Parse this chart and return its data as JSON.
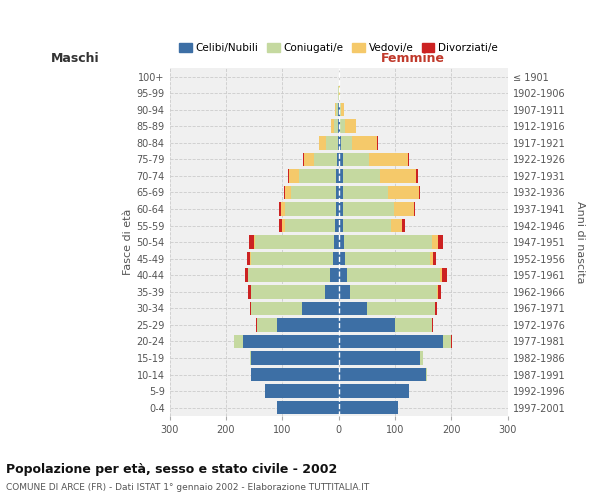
{
  "age_groups": [
    "0-4",
    "5-9",
    "10-14",
    "15-19",
    "20-24",
    "25-29",
    "30-34",
    "35-39",
    "40-44",
    "45-49",
    "50-54",
    "55-59",
    "60-64",
    "65-69",
    "70-74",
    "75-79",
    "80-84",
    "85-89",
    "90-94",
    "95-99",
    "100+"
  ],
  "birth_years": [
    "1997-2001",
    "1992-1996",
    "1987-1991",
    "1982-1986",
    "1977-1981",
    "1972-1976",
    "1967-1971",
    "1962-1966",
    "1957-1961",
    "1952-1956",
    "1947-1951",
    "1942-1946",
    "1937-1941",
    "1932-1936",
    "1927-1931",
    "1922-1926",
    "1917-1921",
    "1912-1916",
    "1907-1911",
    "1902-1906",
    "≤ 1901"
  ],
  "male": {
    "celibe": [
      110,
      130,
      155,
      155,
      170,
      110,
      65,
      25,
      15,
      10,
      8,
      6,
      5,
      5,
      5,
      3,
      2,
      1,
      1,
      0,
      0
    ],
    "coniugato": [
      0,
      0,
      1,
      3,
      15,
      35,
      90,
      130,
      145,
      145,
      140,
      90,
      90,
      80,
      65,
      40,
      20,
      8,
      3,
      1,
      0
    ],
    "vedovo": [
      0,
      0,
      0,
      0,
      0,
      0,
      0,
      1,
      1,
      2,
      3,
      5,
      8,
      10,
      18,
      18,
      12,
      5,
      2,
      0,
      0
    ],
    "divorziato": [
      0,
      0,
      0,
      0,
      0,
      1,
      3,
      4,
      5,
      5,
      8,
      5,
      2,
      2,
      2,
      2,
      0,
      0,
      0,
      0,
      0
    ]
  },
  "female": {
    "nubile": [
      105,
      125,
      155,
      145,
      185,
      100,
      50,
      20,
      15,
      12,
      10,
      8,
      8,
      8,
      8,
      8,
      5,
      3,
      2,
      1,
      0
    ],
    "coniugata": [
      0,
      0,
      1,
      5,
      15,
      65,
      120,
      155,
      165,
      150,
      155,
      85,
      90,
      80,
      65,
      45,
      18,
      8,
      2,
      0,
      0
    ],
    "vedova": [
      0,
      0,
      0,
      0,
      0,
      1,
      1,
      2,
      3,
      5,
      12,
      20,
      35,
      55,
      65,
      70,
      45,
      20,
      5,
      1,
      0
    ],
    "divorziata": [
      0,
      0,
      0,
      0,
      1,
      2,
      3,
      5,
      10,
      5,
      8,
      5,
      3,
      2,
      2,
      2,
      1,
      0,
      0,
      0,
      0
    ]
  },
  "colors": {
    "celibe": "#3d6fa5",
    "coniugato": "#c5d9a0",
    "vedovo": "#f5c96a",
    "divorziato": "#cc2222"
  },
  "xlim": 300,
  "title": "Popolazione per età, sesso e stato civile - 2002",
  "subtitle": "COMUNE DI ARCE (FR) - Dati ISTAT 1° gennaio 2002 - Elaborazione TUTTITALIA.IT",
  "ylabel_left": "Fasce di età",
  "ylabel_right": "Anni di nascita",
  "xlabel_left": "Maschi",
  "xlabel_right": "Femmine",
  "legend_labels": [
    "Celibi/Nubili",
    "Coniugati/e",
    "Vedovi/e",
    "Divorziati/e"
  ]
}
